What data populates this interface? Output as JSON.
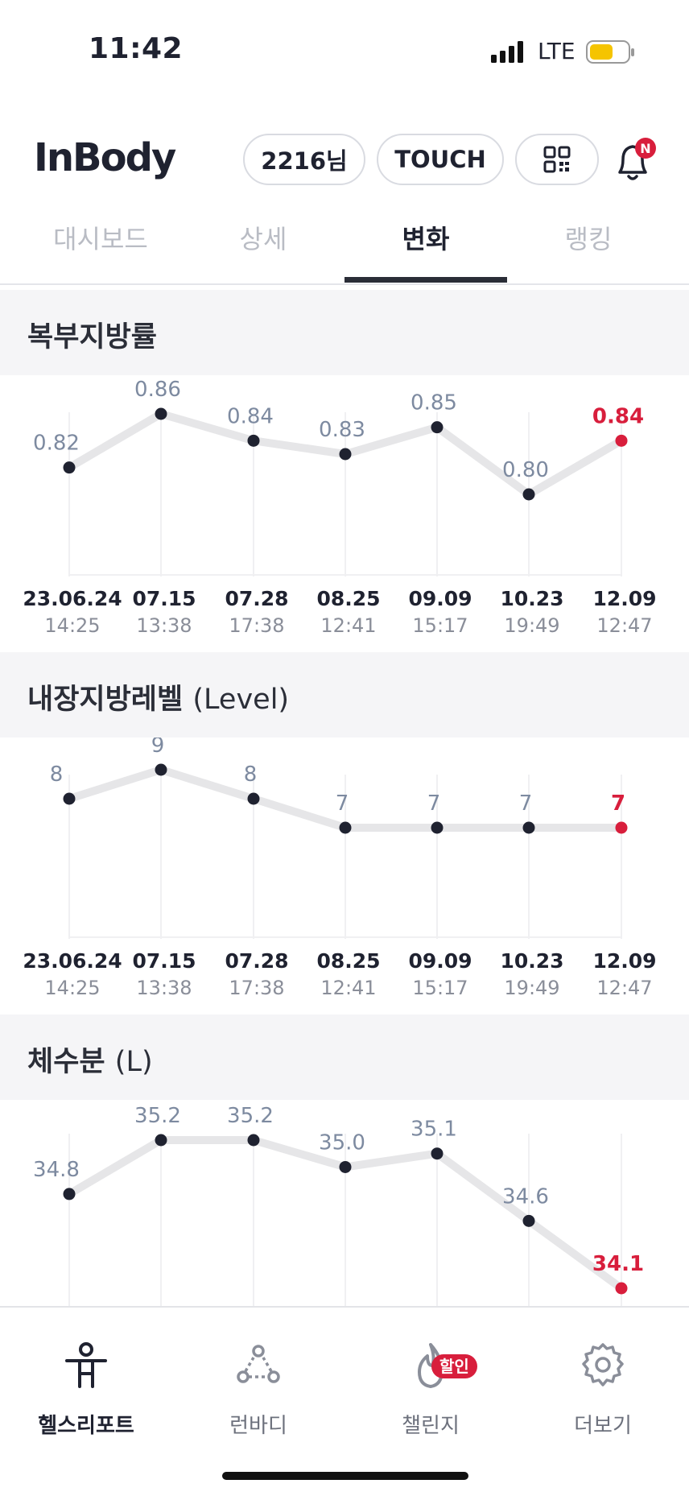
{
  "status_bar": {
    "time": "11:42",
    "network": "LTE"
  },
  "header": {
    "logo": "InBody",
    "user_label": "2216님",
    "touch_label": "TOUCH",
    "notification_badge": "N"
  },
  "tabs": [
    {
      "label": "대시보드",
      "active": false
    },
    {
      "label": "상세",
      "active": false
    },
    {
      "label": "변화",
      "active": true
    },
    {
      "label": "랭킹",
      "active": false
    }
  ],
  "sections": [
    {
      "title": "복부지방률"
    },
    {
      "title": "내장지방레벨",
      "unit": "(Level)"
    },
    {
      "title": "체수분",
      "unit": "(L)"
    }
  ],
  "dates": [
    {
      "date": "23.06.24",
      "time": "14:25"
    },
    {
      "date": "07.15",
      "time": "13:38"
    },
    {
      "date": "07.28",
      "time": "17:38"
    },
    {
      "date": "08.25",
      "time": "12:41"
    },
    {
      "date": "09.09",
      "time": "15:17"
    },
    {
      "date": "10.23",
      "time": "19:49"
    },
    {
      "date": "12.09",
      "time": "12:47"
    }
  ],
  "colors": {
    "latest": "#d81e3c",
    "point": "#1f2230",
    "line": "#e6e6e8",
    "value_label": "#7d8aa0"
  },
  "chart_data": [
    {
      "type": "line",
      "title": "복부지방률",
      "categories": [
        "23.06.24",
        "07.15",
        "07.28",
        "08.25",
        "09.09",
        "10.23",
        "12.09"
      ],
      "values": [
        0.82,
        0.86,
        0.84,
        0.83,
        0.85,
        0.8,
        0.84
      ],
      "labels": [
        "0.82",
        "0.86",
        "0.84",
        "0.83",
        "0.85",
        "0.80",
        "0.84"
      ],
      "ylim": [
        0.8,
        0.86
      ]
    },
    {
      "type": "line",
      "title": "내장지방레벨 (Level)",
      "categories": [
        "23.06.24",
        "07.15",
        "07.28",
        "08.25",
        "09.09",
        "10.23",
        "12.09"
      ],
      "values": [
        8,
        9,
        8,
        7,
        7,
        7,
        7
      ],
      "labels": [
        "8",
        "9",
        "8",
        "7",
        "7",
        "7",
        "7"
      ],
      "ylim": [
        7,
        9
      ]
    },
    {
      "type": "line",
      "title": "체수분 (L)",
      "categories": [
        "23.06.24",
        "07.15",
        "07.28",
        "08.25",
        "09.09",
        "10.23",
        "12.09"
      ],
      "values": [
        34.8,
        35.2,
        35.2,
        35.0,
        35.1,
        34.6,
        34.1
      ],
      "labels": [
        "34.8",
        "35.2",
        "35.2",
        "35.0",
        "35.1",
        "34.6",
        "34.1"
      ],
      "ylim": [
        34.1,
        35.2
      ]
    }
  ],
  "bottom_nav": [
    {
      "label": "헬스리포트",
      "icon": "person-icon",
      "active": true
    },
    {
      "label": "런바디",
      "icon": "community-icon",
      "active": false
    },
    {
      "label": "챌린지",
      "icon": "flame-icon",
      "active": false,
      "badge": "할인"
    },
    {
      "label": "더보기",
      "icon": "gear-icon",
      "active": false
    }
  ]
}
